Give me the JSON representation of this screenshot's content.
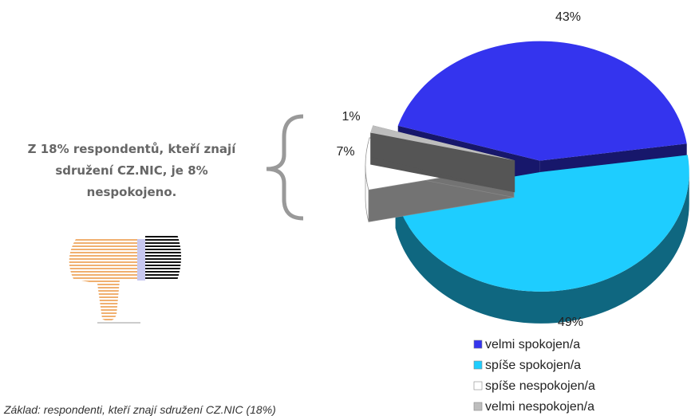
{
  "chart_data": {
    "type": "pie",
    "categories": [
      "velmi spokojen/a",
      "spíše spokojen/a",
      "spíše nespokojen/a",
      "velmi nespokojen/a"
    ],
    "values": [
      43,
      49,
      7,
      1
    ],
    "value_labels": [
      "43%",
      "49%",
      "7%",
      "1%"
    ],
    "colors": [
      "#3434ee",
      "#1ecdff",
      "#ffffff",
      "#bdbdbd"
    ],
    "legend": "bottom-right"
  },
  "annotation": "Z 18% respondentů, kteří znají sdružení CZ.NIC, je 8% nespokojeno.",
  "footnote": "Základ: respondenti, kteří znají sdružení CZ.NIC (18%)"
}
